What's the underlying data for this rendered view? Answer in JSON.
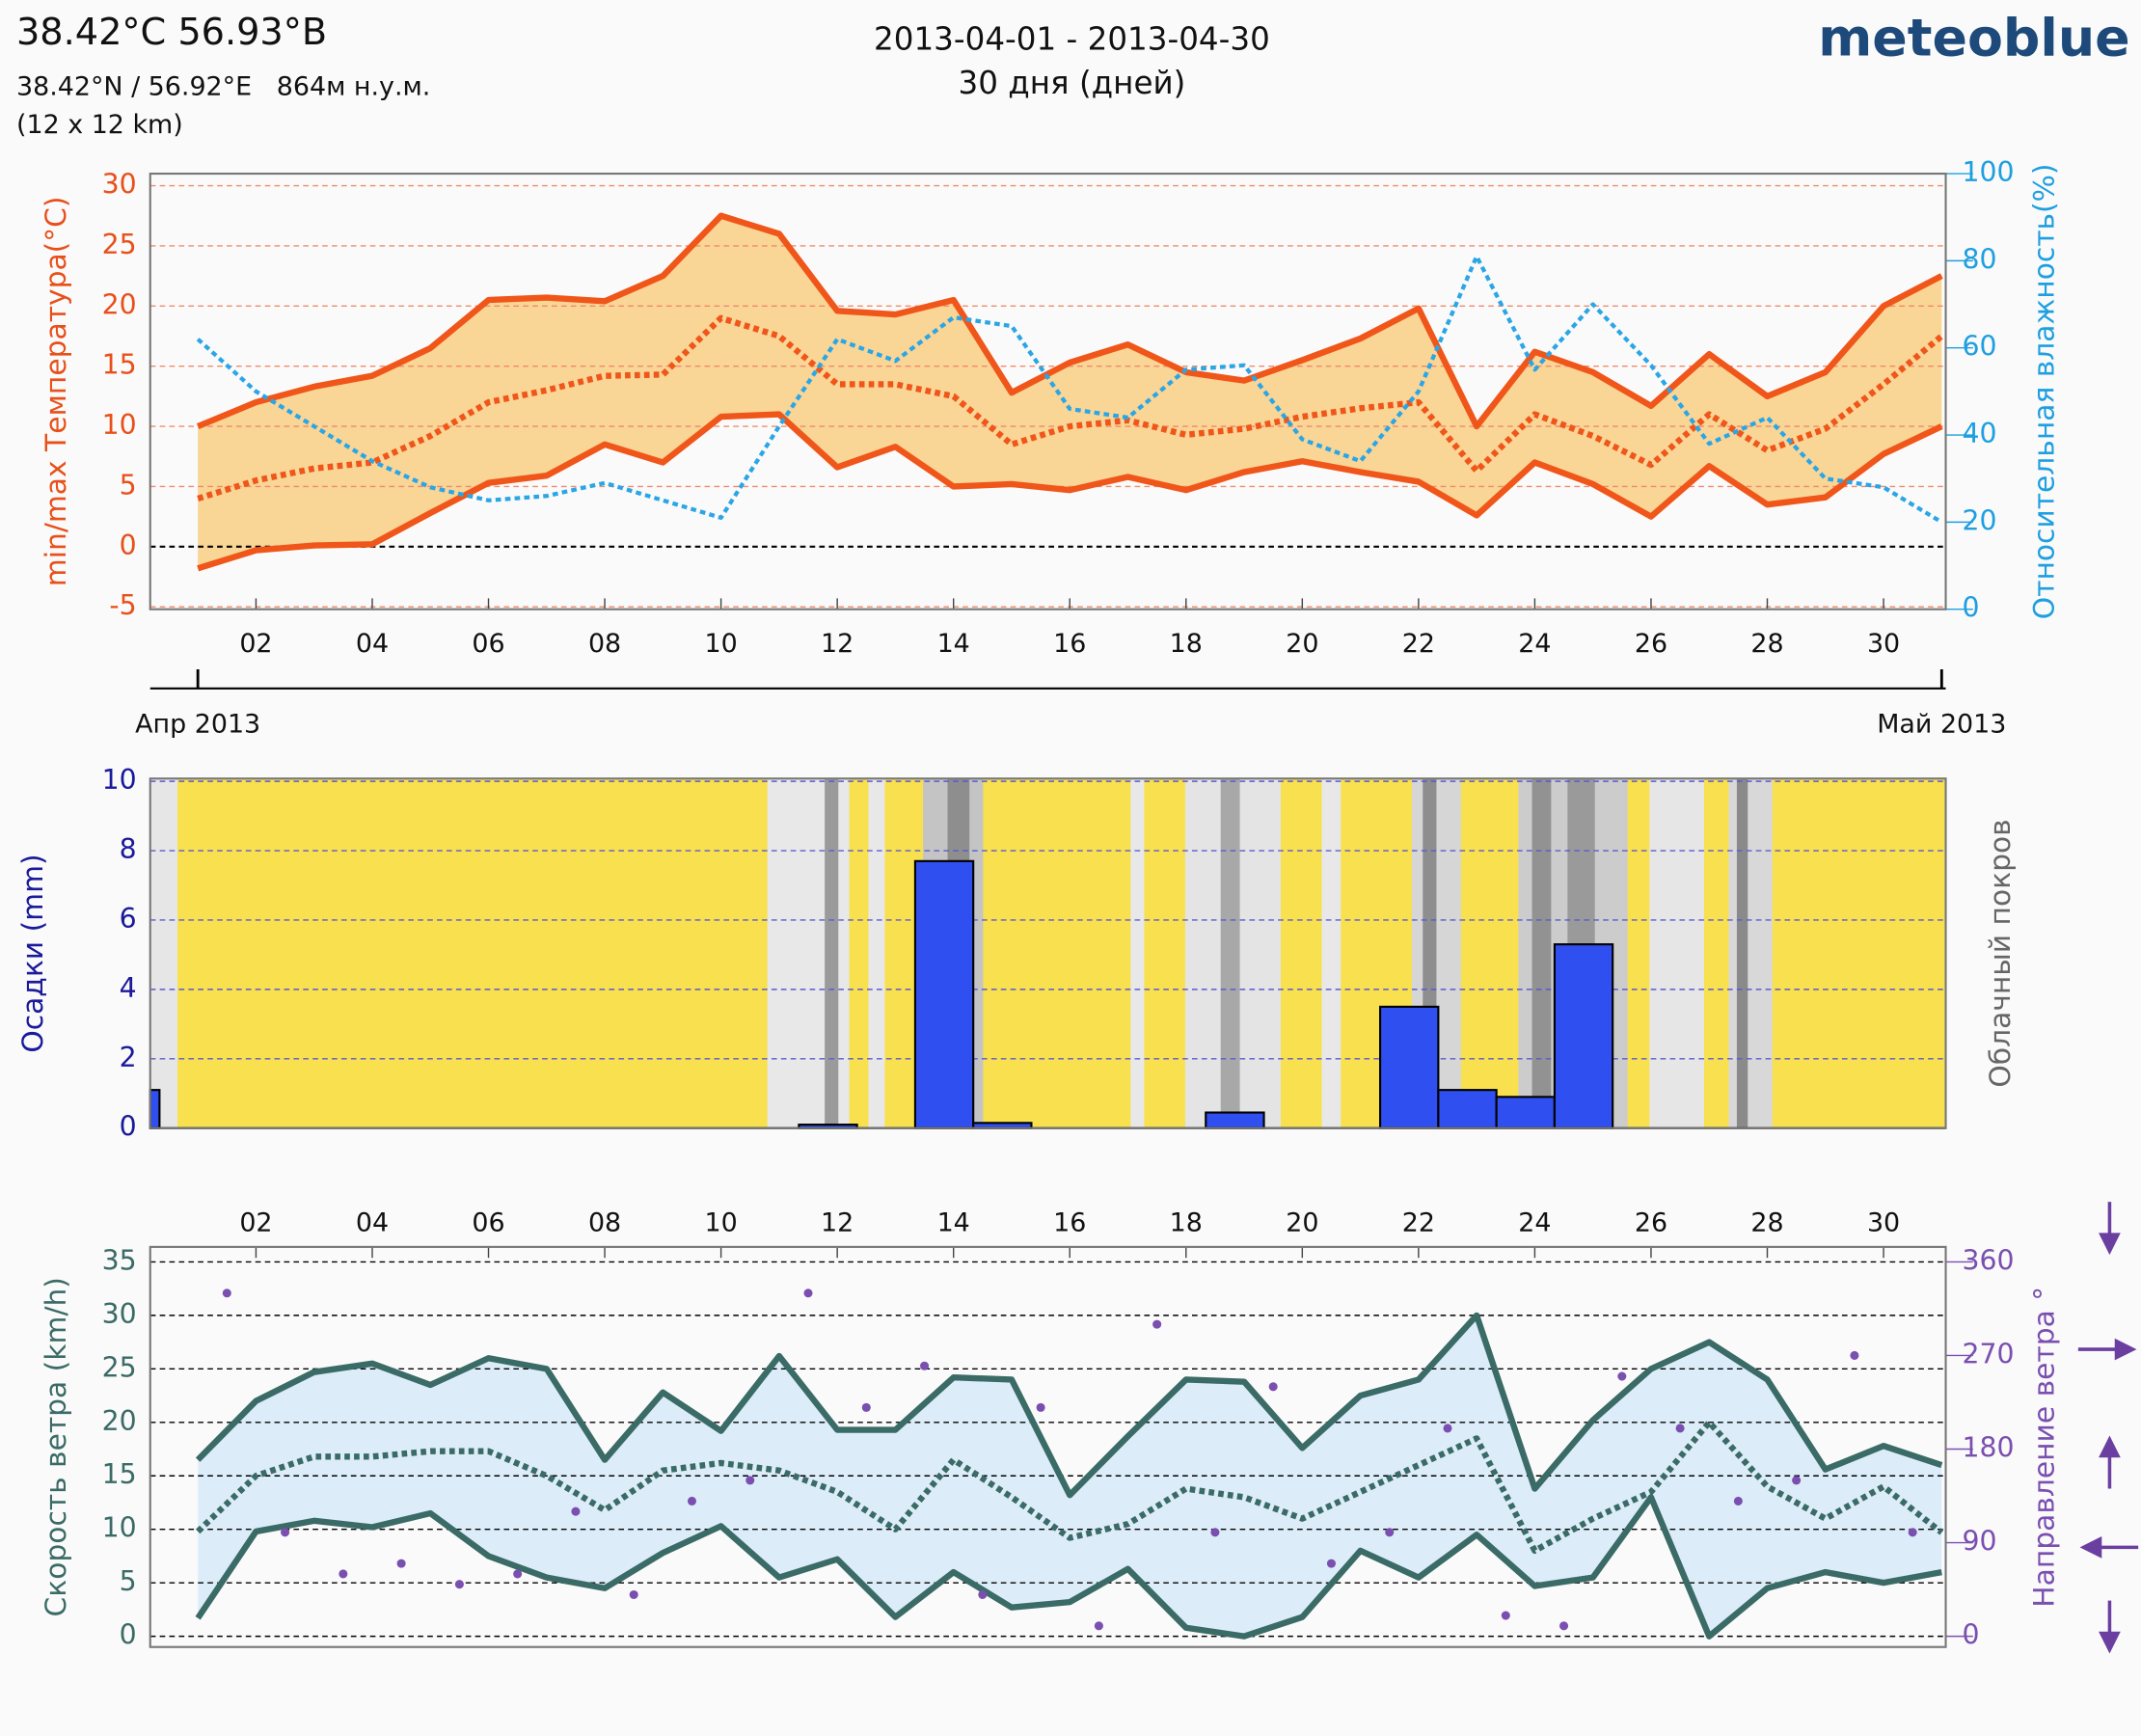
{
  "header": {
    "coords": "38.42°C 56.93°B",
    "location": "38.42°N / 56.92°E   864м н.у.м.",
    "resolution": "(12 x 12 km)",
    "period": "2013-04-01 - 2013-04-30",
    "duration": "30 дня (дней)",
    "brand": "meteoblue"
  },
  "chart_data": [
    {
      "type": "line",
      "ylabel": "min/max Температура(°C)",
      "y2label": "Относительная влажность(%)",
      "x": [
        1,
        2,
        3,
        4,
        5,
        6,
        7,
        8,
        9,
        10,
        11,
        12,
        13,
        14,
        15,
        16,
        17,
        18,
        19,
        20,
        21,
        22,
        23,
        24,
        25,
        26,
        27,
        28,
        29,
        30,
        31
      ],
      "xlim": [
        0.18,
        31.07
      ],
      "xticks": [
        {
          "value": 2,
          "label": "02"
        },
        {
          "value": 4,
          "label": "04"
        },
        {
          "value": 6,
          "label": "06"
        },
        {
          "value": 8,
          "label": "08"
        },
        {
          "value": 10,
          "label": "10"
        },
        {
          "value": 12,
          "label": "12"
        },
        {
          "value": 14,
          "label": "14"
        },
        {
          "value": 16,
          "label": "16"
        },
        {
          "value": 18,
          "label": "18"
        },
        {
          "value": 20,
          "label": "20"
        },
        {
          "value": 22,
          "label": "22"
        },
        {
          "value": 24,
          "label": "24"
        },
        {
          "value": 26,
          "label": "26"
        },
        {
          "value": 28,
          "label": "28"
        },
        {
          "value": 30,
          "label": "30"
        }
      ],
      "xticks2": [
        {
          "value": 1,
          "label": "Апр 2013"
        },
        {
          "value": 31,
          "label": "Май 2013"
        }
      ],
      "xtick_position": "bottom",
      "ylim": [
        -5.2,
        31
      ],
      "yticks": [
        -5,
        0,
        5,
        10,
        15,
        20,
        25,
        30
      ],
      "y2lim": [
        0,
        100
      ],
      "y2ticks": [
        0,
        20,
        40,
        60,
        80,
        100
      ],
      "grid": true,
      "grid_color": "#f08a6a",
      "zero_line_color": "#000000",
      "ycolor": "#e8501a",
      "y2color": "#1e9fe0",
      "background": "#fafafa",
      "fill_between": [
        0,
        2
      ],
      "fill_color": "#f9d596",
      "series": [
        {
          "color": "#f0561a",
          "style": "solid",
          "values": [
            10,
            12,
            13.3,
            14.2,
            16.5,
            20.5,
            20.7,
            20.4,
            22.5,
            27.5,
            26,
            19.6,
            19.3,
            20.5,
            12.8,
            15.3,
            16.8,
            14.5,
            13.8,
            15.5,
            17.3,
            19.8,
            10,
            16.2,
            14.5,
            11.7,
            16,
            12.5,
            14.5,
            20,
            22.5
          ]
        },
        {
          "color": "#f0561a",
          "style": "dotted",
          "values": [
            4,
            5.5,
            6.5,
            7,
            9.2,
            12,
            13,
            14.2,
            14.3,
            19,
            17.5,
            13.5,
            13.5,
            12.5,
            8.5,
            10,
            10.5,
            9.3,
            9.8,
            10.8,
            11.5,
            12,
            6.3,
            11,
            9.2,
            6.8,
            11,
            8,
            9.8,
            13.5,
            17.5
          ]
        },
        {
          "color": "#f0561a",
          "style": "solid",
          "values": [
            -1.8,
            -0.3,
            0.1,
            0.2,
            2.8,
            5.3,
            5.9,
            8.5,
            7,
            10.8,
            11,
            6.6,
            8.3,
            5,
            5.2,
            4.7,
            5.8,
            4.7,
            6.2,
            7.1,
            6.2,
            5.4,
            2.6,
            7,
            5.2,
            2.5,
            6.7,
            3.5,
            4.1,
            7.7,
            10
          ]
        },
        {
          "color": "#2aa6e6",
          "style": "dotted",
          "axis": "y2",
          "values": [
            62,
            50,
            42,
            34,
            28,
            25,
            26,
            29,
            25,
            21,
            42,
            62,
            57,
            67,
            65,
            46,
            44,
            55,
            56,
            39,
            34,
            50,
            81,
            55,
            70,
            56,
            38,
            44,
            30,
            28,
            20
          ]
        }
      ]
    },
    {
      "type": "histogram",
      "ylabel": "Осадки (mm)",
      "y2label": "Облачный покров",
      "bins": [
        0.18,
        0.34,
        1.34,
        2.34,
        3.34,
        4.34,
        5.34,
        6.34,
        7.34,
        8.34,
        9.34,
        10.34,
        11.34,
        12.34,
        13.34,
        14.34,
        15.34,
        16.34,
        17.34,
        18.34,
        19.34,
        20.34,
        21.34,
        22.34,
        23.34,
        24.34,
        25.34,
        26.34,
        27.34,
        28.34,
        29.34,
        30.34
      ],
      "counts": [
        1.1,
        0,
        0,
        0,
        0,
        0,
        0,
        0,
        0,
        0,
        0,
        0,
        0.1,
        0,
        7.7,
        0.15,
        0,
        0,
        0,
        0.45,
        0,
        0,
        3.5,
        1.1,
        0.9,
        5.3,
        0,
        0,
        0,
        0,
        0
      ],
      "xlim": [
        0.18,
        31.07
      ],
      "ylim": [
        0,
        10.08
      ],
      "yticks": [
        0,
        2,
        4,
        6,
        8,
        10
      ],
      "grid": true,
      "grid_color": "#5a5ad0",
      "color": "#2f4ff0",
      "ycolor": "#1a1a9a",
      "y2color": "#666666"
    },
    {
      "type": "line",
      "ylabel": "Скорость ветра (km/h)",
      "y2label": "Направление ветра °",
      "x": [
        1,
        2,
        3,
        4,
        5,
        6,
        7,
        8,
        9,
        10,
        11,
        12,
        13,
        14,
        15,
        16,
        17,
        18,
        19,
        20,
        21,
        22,
        23,
        24,
        25,
        26,
        27,
        28,
        29,
        30,
        31
      ],
      "xlim": [
        0.18,
        31.07
      ],
      "xticks": [
        {
          "value": 2,
          "label": "02"
        },
        {
          "value": 4,
          "label": "04"
        },
        {
          "value": 6,
          "label": "06"
        },
        {
          "value": 8,
          "label": "08"
        },
        {
          "value": 10,
          "label": "10"
        },
        {
          "value": 12,
          "label": "12"
        },
        {
          "value": 14,
          "label": "14"
        },
        {
          "value": 16,
          "label": "16"
        },
        {
          "value": 18,
          "label": "18"
        },
        {
          "value": 20,
          "label": "20"
        },
        {
          "value": 22,
          "label": "22"
        },
        {
          "value": 24,
          "label": "24"
        },
        {
          "value": 26,
          "label": "26"
        },
        {
          "value": 28,
          "label": "28"
        },
        {
          "value": 30,
          "label": "30"
        }
      ],
      "xtick_position": "top",
      "ylim": [
        -1,
        36.4
      ],
      "yticks": [
        0,
        5,
        10,
        15,
        20,
        25,
        30,
        35
      ],
      "y2lim": [
        -10.3,
        374.4
      ],
      "y2ticks": [
        0,
        90,
        180,
        270,
        360
      ],
      "grid": true,
      "grid_color": "#000000",
      "ycolor": "#3b6b66",
      "y2color": "#7a4fb0",
      "background": "#fafafa",
      "fill_between": [
        0,
        2
      ],
      "fill_color": "#dcedf9",
      "series": [
        {
          "color": "#3b6b66",
          "style": "solid",
          "values": [
            16.5,
            22,
            24.7,
            25.5,
            23.5,
            26,
            25,
            16.5,
            22.8,
            19.2,
            26.2,
            19.3,
            19.3,
            24.2,
            24,
            13.2,
            18.7,
            24,
            23.8,
            17.6,
            22.5,
            24,
            30,
            13.8,
            20.2,
            25,
            27.5,
            24,
            15.6,
            17.8,
            16
          ]
        },
        {
          "color": "#3b6b66",
          "style": "dotted",
          "values": [
            9.8,
            15,
            16.8,
            16.8,
            17.3,
            17.3,
            15,
            11.8,
            15.5,
            16.2,
            15.5,
            13.5,
            10,
            16.5,
            13,
            9.2,
            10.5,
            13.8,
            13,
            11,
            13.5,
            16,
            18.5,
            8,
            11,
            13.5,
            20,
            14,
            11,
            14,
            9.7
          ]
        },
        {
          "color": "#3b6b66",
          "style": "solid",
          "values": [
            1.7,
            9.8,
            10.8,
            10.2,
            11.5,
            7.5,
            5.5,
            4.5,
            7.8,
            10.3,
            5.5,
            7.2,
            1.8,
            6,
            2.7,
            3.2,
            6.3,
            0.8,
            0,
            1.8,
            8,
            5.5,
            9.5,
            4.7,
            5.5,
            13,
            0,
            4.5,
            6,
            5,
            6
          ]
        },
        {
          "color": "#7a4fb0",
          "style": "dot",
          "axis": "y2",
          "x": [
            1.5,
            2.5,
            3.5,
            4.5,
            5.5,
            6.5,
            7.5,
            8.5,
            9.5,
            10.5,
            11.5,
            12.5,
            13.5,
            14.5,
            15.5,
            16.5,
            17.5,
            18.5,
            19.5,
            20.5,
            21.5,
            22.5,
            23.5,
            24.5,
            25.5,
            26.5,
            27.5,
            28.5,
            29.5,
            30.5
          ],
          "values": [
            330,
            100,
            60,
            70,
            50,
            60,
            120,
            40,
            130,
            150,
            330,
            220,
            260,
            40,
            220,
            10,
            300,
            100,
            240,
            70,
            100,
            200,
            20,
            10,
            250,
            200,
            130,
            150,
            270,
            100
          ]
        }
      ]
    }
  ]
}
